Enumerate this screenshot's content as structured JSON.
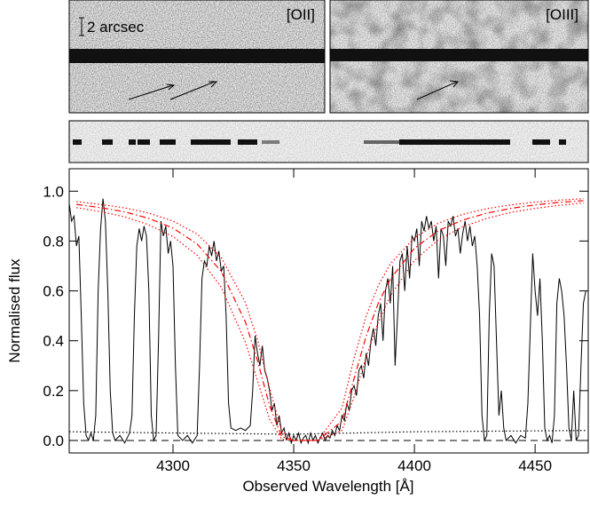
{
  "images": {
    "scale_bar": "2 arcsec",
    "left_label": "[OII]",
    "right_label": "[OIII]"
  },
  "chart_data": {
    "type": "line",
    "xlabel": "Observed Wavelength [Å]",
    "ylabel": "Normalised flux",
    "xlim": [
      4257,
      4472
    ],
    "ylim": [
      -0.05,
      1.09
    ],
    "xticks": [
      4300,
      4350,
      4400,
      4450
    ],
    "yticks": [
      {
        "value": 0,
        "label": "0.0"
      },
      0.2,
      0.4,
      0.6,
      0.8,
      {
        "value": 1,
        "label": "1.0"
      }
    ],
    "reference_line": 0,
    "series": [
      {
        "color": "#000000",
        "style": "solid",
        "x": [
          4257,
          4258,
          4259,
          4260,
          4261,
          4262,
          4263,
          4264,
          4265,
          4266,
          4267,
          4268,
          4269,
          4270,
          4271,
          4272,
          4273,
          4274,
          4275,
          4276,
          4278,
          4280,
          4282,
          4283,
          4284,
          4285,
          4286,
          4287,
          4288,
          4289,
          4290,
          4291,
          4292,
          4293,
          4294,
          4295,
          4296,
          4297,
          4298,
          4299,
          4300,
          4301,
          4302,
          4304,
          4306,
          4308,
          4310,
          4311,
          4312,
          4313,
          4314,
          4315,
          4316,
          4317,
          4318,
          4319,
          4320,
          4321,
          4322,
          4323,
          4324,
          4326,
          4328,
          4330,
          4332,
          4333,
          4334,
          4335,
          4336,
          4337,
          4338,
          4339,
          4340,
          4341,
          4342,
          4343,
          4344,
          4345,
          4346,
          4347,
          4348,
          4349,
          4350,
          4351,
          4352,
          4353,
          4354,
          4355,
          4356,
          4357,
          4358,
          4359,
          4360,
          4361,
          4362,
          4363,
          4364,
          4365,
          4366,
          4367,
          4368,
          4369,
          4370,
          4371,
          4372,
          4373,
          4374,
          4375,
          4376,
          4377,
          4378,
          4379,
          4380,
          4381,
          4382,
          4383,
          4384,
          4385,
          4386,
          4387,
          4388,
          4389,
          4390,
          4391,
          4392,
          4393,
          4394,
          4395,
          4396,
          4397,
          4398,
          4399,
          4400,
          4401,
          4402,
          4403,
          4404,
          4405,
          4406,
          4407,
          4408,
          4409,
          4410,
          4411,
          4412,
          4413,
          4414,
          4415,
          4416,
          4417,
          4418,
          4419,
          4420,
          4421,
          4422,
          4423,
          4424,
          4425,
          4426,
          4427,
          4428,
          4429,
          4430,
          4431,
          4432,
          4433,
          4434,
          4435,
          4436,
          4437,
          4438,
          4440,
          4442,
          4444,
          4446,
          4447,
          4448,
          4449,
          4450,
          4451,
          4452,
          4453,
          4454,
          4455,
          4456,
          4457,
          4458,
          4459,
          4460,
          4461,
          4462,
          4463,
          4464,
          4465,
          4466,
          4467,
          4468,
          4469,
          4470,
          4471
        ],
        "values": [
          0.95,
          0.88,
          0.9,
          0.78,
          0.82,
          0.5,
          0.15,
          0.02,
          0.0,
          0.03,
          0.0,
          0.1,
          0.6,
          0.85,
          0.97,
          0.88,
          0.6,
          0.2,
          0.03,
          0.0,
          0.02,
          -0.01,
          0.03,
          0.1,
          0.5,
          0.78,
          0.85,
          0.8,
          0.86,
          0.82,
          0.6,
          0.1,
          0.0,
          0.02,
          0.4,
          0.88,
          0.82,
          0.86,
          0.75,
          0.8,
          0.7,
          0.3,
          0.02,
          0.0,
          0.02,
          -0.01,
          0.02,
          0.3,
          0.65,
          0.72,
          0.7,
          0.78,
          0.74,
          0.8,
          0.72,
          0.76,
          0.68,
          0.7,
          0.5,
          0.15,
          0.05,
          0.04,
          0.05,
          0.04,
          0.06,
          0.2,
          0.42,
          0.35,
          0.3,
          0.38,
          0.28,
          0.25,
          0.2,
          0.12,
          0.15,
          0.06,
          0.1,
          0.03,
          0.05,
          0.0,
          0.03,
          -0.01,
          0.02,
          0.0,
          0.03,
          -0.01,
          0.01,
          0.02,
          -0.01,
          0.03,
          0.0,
          0.02,
          -0.01,
          0.01,
          0.03,
          0.0,
          0.02,
          0.01,
          0.04,
          0.02,
          0.06,
          0.04,
          0.1,
          0.08,
          0.15,
          0.12,
          0.2,
          0.22,
          0.18,
          0.28,
          0.3,
          0.25,
          0.35,
          0.3,
          0.4,
          0.45,
          0.38,
          0.5,
          0.55,
          0.4,
          0.6,
          0.65,
          0.55,
          0.7,
          0.3,
          0.5,
          0.72,
          0.75,
          0.6,
          0.78,
          0.65,
          0.82,
          0.8,
          0.85,
          0.7,
          0.88,
          0.84,
          0.9,
          0.85,
          0.88,
          0.8,
          0.86,
          0.65,
          0.85,
          0.82,
          0.7,
          0.88,
          0.86,
          0.9,
          0.82,
          0.85,
          0.75,
          0.83,
          0.88,
          0.8,
          0.86,
          0.78,
          0.82,
          0.7,
          0.5,
          0.1,
          0.0,
          0.02,
          0.5,
          0.75,
          0.7,
          0.4,
          0.1,
          0.2,
          0.05,
          0.0,
          0.02,
          -0.01,
          0.02,
          0.01,
          0.15,
          0.45,
          0.75,
          0.6,
          0.5,
          0.65,
          0.4,
          0.05,
          0.0,
          0.02,
          -0.01,
          0.1,
          0.55,
          0.65,
          0.6,
          0.5,
          0.3,
          0.05,
          0.0,
          0.2,
          0.0,
          0.02,
          0.3,
          0.55,
          0.6
        ]
      },
      {
        "color": "#000000",
        "style": "dotted",
        "x": [
          4257,
          4300,
          4350,
          4400,
          4471
        ],
        "values": [
          0.035,
          0.03,
          0.025,
          0.035,
          0.04
        ]
      },
      {
        "color": "#ff0000",
        "style": "dashdot",
        "x": [
          4260,
          4270,
          4280,
          4290,
          4300,
          4310,
          4320,
          4330,
          4335,
          4340,
          4345,
          4350,
          4360,
          4370,
          4375,
          4380,
          4385,
          4390,
          4400,
          4410,
          4420,
          4430,
          4440,
          4450,
          4460,
          4470
        ],
        "values": [
          0.947,
          0.934,
          0.917,
          0.891,
          0.852,
          0.788,
          0.678,
          0.475,
          0.32,
          0.14,
          0.016,
          0,
          0,
          0.077,
          0.248,
          0.418,
          0.55,
          0.647,
          0.771,
          0.842,
          0.884,
          0.912,
          0.931,
          0.945,
          0.955,
          0.962
        ]
      },
      {
        "color": "#ff0000",
        "style": "dotted",
        "x": [
          4260,
          4270,
          4280,
          4290,
          4300,
          4310,
          4320,
          4330,
          4335,
          4340,
          4345,
          4350,
          4360,
          4370,
          4375,
          4380,
          4385,
          4390,
          4400,
          4410,
          4420,
          4430,
          4440,
          4450,
          4460,
          4470
        ],
        "values": [
          0.958,
          0.947,
          0.933,
          0.912,
          0.88,
          0.828,
          0.734,
          0.553,
          0.404,
          0.21,
          0.037,
          0,
          0,
          0.13,
          0.33,
          0.499,
          0.621,
          0.708,
          0.813,
          0.872,
          0.907,
          0.93,
          0.945,
          0.956,
          0.964,
          0.97
        ]
      },
      {
        "color": "#ff0000",
        "style": "dotted",
        "x": [
          4260,
          4270,
          4280,
          4290,
          4300,
          4310,
          4320,
          4330,
          4335,
          4340,
          4345,
          4350,
          4360,
          4370,
          4375,
          4380,
          4385,
          4390,
          4400,
          4410,
          4420,
          4430,
          4440,
          4450,
          4460,
          4470
        ],
        "values": [
          0.934,
          0.918,
          0.897,
          0.865,
          0.818,
          0.743,
          0.615,
          0.394,
          0.24,
          0.085,
          0.005,
          0,
          0,
          0.04,
          0.175,
          0.335,
          0.473,
          0.58,
          0.722,
          0.806,
          0.857,
          0.891,
          0.915,
          0.931,
          0.943,
          0.953
        ]
      }
    ]
  }
}
